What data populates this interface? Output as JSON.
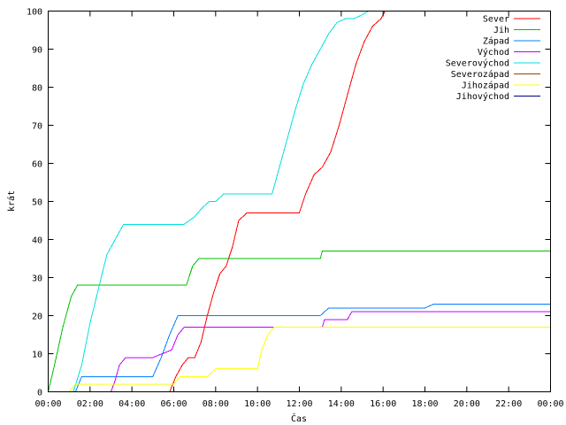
{
  "chart_data": {
    "type": "line",
    "title": "",
    "xlabel": "Čas",
    "ylabel": "krát",
    "xlim": [
      0,
      24
    ],
    "ylim": [
      0,
      100
    ],
    "x_ticks": [
      {
        "value": 0,
        "label": "00:00"
      },
      {
        "value": 2,
        "label": "02:00"
      },
      {
        "value": 4,
        "label": "04:00"
      },
      {
        "value": 6,
        "label": "06:00"
      },
      {
        "value": 8,
        "label": "08:00"
      },
      {
        "value": 10,
        "label": "10:00"
      },
      {
        "value": 12,
        "label": "12:00"
      },
      {
        "value": 14,
        "label": "14:00"
      },
      {
        "value": 16,
        "label": "16:00"
      },
      {
        "value": 18,
        "label": "18:00"
      },
      {
        "value": 20,
        "label": "20:00"
      },
      {
        "value": 22,
        "label": "22:00"
      },
      {
        "value": 24,
        "label": "00:00"
      }
    ],
    "y_ticks": [
      {
        "value": 0,
        "label": "0"
      },
      {
        "value": 10,
        "label": "10"
      },
      {
        "value": 20,
        "label": "20"
      },
      {
        "value": 30,
        "label": "30"
      },
      {
        "value": 40,
        "label": "40"
      },
      {
        "value": 50,
        "label": "50"
      },
      {
        "value": 60,
        "label": "60"
      },
      {
        "value": 70,
        "label": "70"
      },
      {
        "value": 80,
        "label": "80"
      },
      {
        "value": 90,
        "label": "90"
      },
      {
        "value": 100,
        "label": "100"
      }
    ],
    "grid": false,
    "legend_position": "top-right",
    "series": [
      {
        "name": "Sever",
        "color": "#ff0000",
        "x": [
          0,
          5.8,
          6.1,
          6.4,
          6.7,
          7.0,
          7.3,
          7.6,
          7.9,
          8.2,
          8.5,
          8.8,
          9.1,
          9.5,
          10.0,
          11.0,
          12.0,
          12.3,
          12.7,
          13.1,
          13.5,
          13.9,
          14.3,
          14.7,
          15.1,
          15.5,
          15.9,
          16.1,
          16.3
        ],
        "y": [
          0,
          0,
          4,
          7,
          9,
          9,
          13,
          20,
          26,
          31,
          33,
          38,
          45,
          47,
          47,
          47,
          47,
          52,
          57,
          59,
          63,
          70,
          78,
          86,
          92,
          96,
          98,
          100,
          100
        ]
      },
      {
        "name": "Jih",
        "color": "#00c000",
        "x": [
          0,
          0.3,
          0.7,
          1.1,
          1.4,
          3.0,
          5.0,
          6.6,
          6.9,
          7.2,
          10.0,
          13.0,
          13.1,
          16.0,
          20.0,
          24
        ],
        "y": [
          0,
          7,
          17,
          25,
          28,
          28,
          28,
          28,
          33,
          35,
          35,
          35,
          37,
          37,
          37,
          37
        ]
      },
      {
        "name": "Západ",
        "color": "#0080ff",
        "x": [
          0,
          1.3,
          1.6,
          3.0,
          5.0,
          5.4,
          5.8,
          6.2,
          9.0,
          13.0,
          13.4,
          18.0,
          18.4,
          24
        ],
        "y": [
          0,
          0,
          4,
          4,
          4,
          9,
          15,
          20,
          20,
          20,
          22,
          22,
          23,
          23
        ]
      },
      {
        "name": "Východ",
        "color": "#c000ff",
        "x": [
          0,
          3.0,
          3.2,
          3.4,
          3.7,
          3.9,
          5.0,
          5.9,
          6.2,
          6.5,
          9.0,
          13.1,
          13.2,
          14.3,
          14.5,
          24
        ],
        "y": [
          0,
          0,
          3,
          7,
          9,
          9,
          9,
          11,
          15,
          17,
          17,
          17,
          19,
          19,
          21,
          21
        ]
      },
      {
        "name": "Severovýchod",
        "color": "#00e0e0",
        "x": [
          0,
          1.2,
          1.6,
          2.0,
          2.4,
          2.8,
          3.2,
          3.6,
          4.0,
          5.0,
          6.5,
          7.0,
          7.3,
          7.7,
          8.0,
          8.4,
          8.7,
          10.0,
          10.7,
          11.0,
          11.4,
          11.8,
          12.2,
          12.6,
          13.0,
          13.4,
          13.8,
          14.2,
          14.6,
          15.0,
          15.3,
          24
        ],
        "y": [
          0,
          0,
          7,
          18,
          27,
          36,
          40,
          44,
          44,
          44,
          44,
          46,
          48,
          50,
          50,
          52,
          52,
          52,
          52,
          58,
          66,
          74,
          81,
          86,
          90,
          94,
          97,
          98,
          98,
          99,
          100,
          100
        ]
      },
      {
        "name": "Severozápad",
        "color": "#a04000",
        "x": [
          0,
          24
        ],
        "y": [
          0,
          0
        ]
      },
      {
        "name": "Jihozápad",
        "color": "#ffff00",
        "x": [
          0,
          1.0,
          1.3,
          3.0,
          5.0,
          6.0,
          6.3,
          7.0,
          7.6,
          8.0,
          9.0,
          10.0,
          10.2,
          10.5,
          10.8,
          12.0,
          16.0,
          24
        ],
        "y": [
          0,
          0,
          2,
          2,
          2,
          2,
          4,
          4,
          4,
          6,
          6,
          6,
          11,
          15,
          17,
          17,
          17,
          17
        ]
      },
      {
        "name": "Jihovýchod",
        "color": "#000080",
        "x": [
          0,
          24
        ],
        "y": [
          0,
          0
        ]
      }
    ]
  }
}
